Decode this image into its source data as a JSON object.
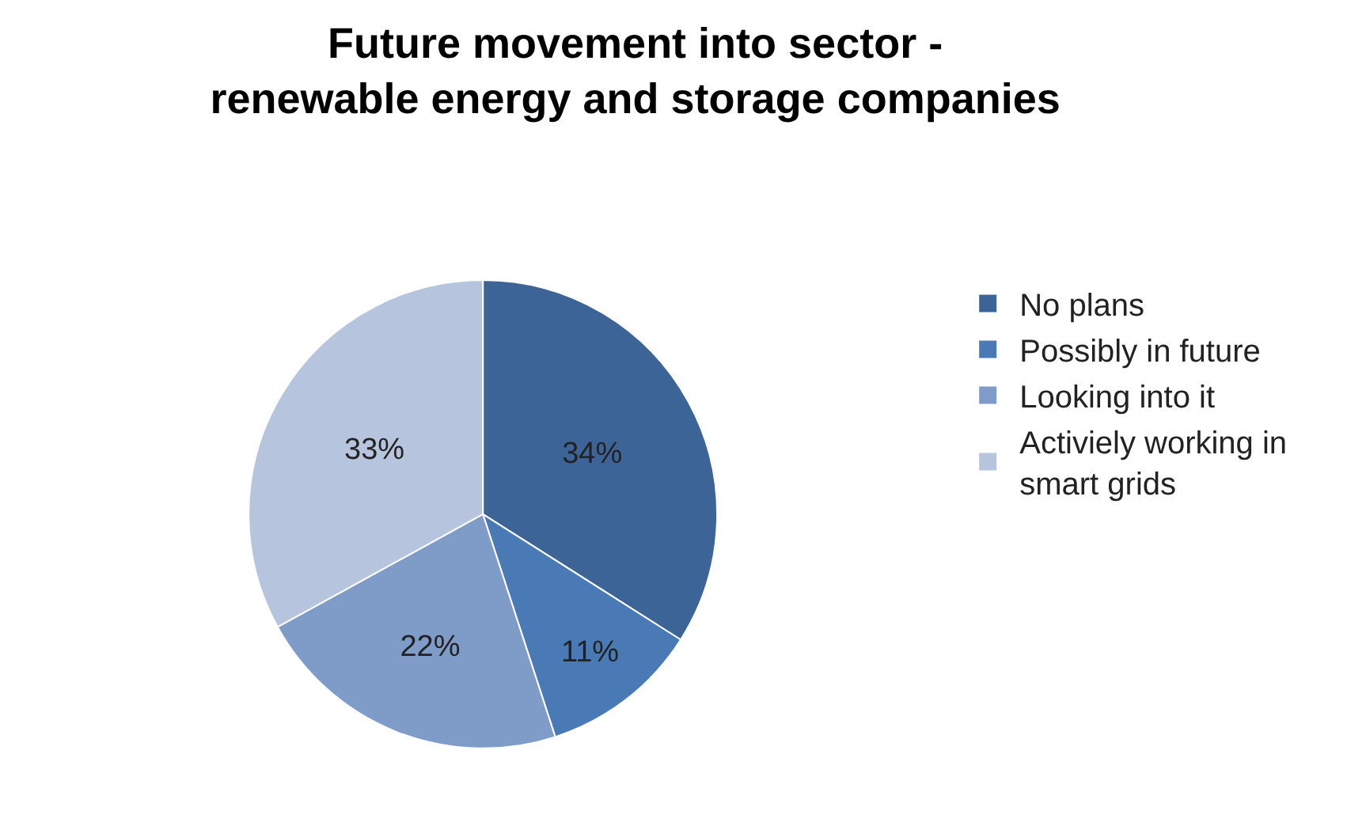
{
  "chart_data": {
    "type": "pie",
    "title": "Future movement into sector - renewable energy and storage companies",
    "categories": [
      "No plans",
      "Possibly in future",
      "Looking into it",
      "Activiely working in smart grids"
    ],
    "values": [
      34,
      11,
      22,
      33
    ],
    "value_labels": [
      "34%",
      "11%",
      "22%",
      "33%"
    ],
    "colors": [
      "#3d6496",
      "#4a7ab5",
      "#7f9cc8",
      "#b6c4de"
    ],
    "legend": "right"
  }
}
